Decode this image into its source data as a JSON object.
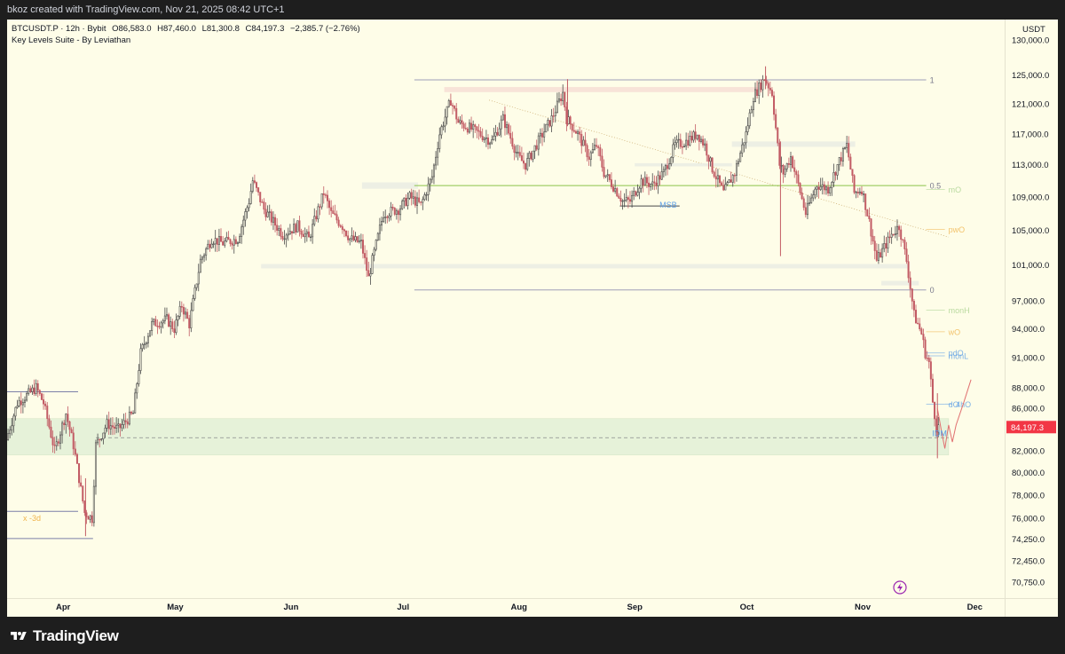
{
  "header": {
    "caption": "bkoz created with TradingView.com, Nov 21, 2025 08:42 UTC+1"
  },
  "legend": {
    "symbol": "BTCUSDT.P · 12h · Bybit",
    "open": "O86,583.0",
    "high": "H87,460.0",
    "low": "L81,300.8",
    "close": "C84,197.3",
    "change": "−2,385.7 (−2.76%)",
    "indicator": "Key Levels Suite - By Leviathan"
  },
  "footer": {
    "brand": "TradingView"
  },
  "colors": {
    "background": "#fefde8",
    "candle_up": "#4a4a4a",
    "candle_down": "#c25b64",
    "last_price_bg": "#f23645",
    "zone_fill": "#e6f2d9",
    "level_line": "#9f9fb8",
    "fib_mid": "#8bc34a",
    "annotation_blue": "#5b9ee6",
    "annotation_orange": "#f0b44c",
    "projection": "#e07070"
  },
  "icons": [
    "tradingview-logo-icon",
    "lightning-icon"
  ],
  "chart_data": {
    "type": "candlestick",
    "interval": "12h",
    "currency_label": "USDT",
    "y_ticks": [
      "130,000.0",
      "125,000.0",
      "121,000.0",
      "117,000.0",
      "113,000.0",
      "109,000.0",
      "105,000.0",
      "101,000.0",
      "97,000.0",
      "94,000.0",
      "91,000.0",
      "88,000.0",
      "86,000.0",
      "84,197.3",
      "82,000.0",
      "80,000.0",
      "78,000.0",
      "76,000.0",
      "74,250.0",
      "72,450.0",
      "70,750.0"
    ],
    "y_tick_values": [
      130000,
      125000,
      121000,
      117000,
      113000,
      109000,
      105000,
      101000,
      97000,
      94000,
      91000,
      88000,
      86000,
      84197.3,
      82000,
      80000,
      78000,
      76000,
      74250,
      72450,
      70750
    ],
    "y_scale": "log",
    "ylim": [
      69500,
      133000
    ],
    "x_ticks": [
      "Apr",
      "May",
      "Jun",
      "Jul",
      "Aug",
      "Sep",
      "Oct",
      "Nov",
      "Dec"
    ],
    "x_tick_dates": [
      "2025-04-01",
      "2025-05-01",
      "2025-06-01",
      "2025-07-01",
      "2025-08-01",
      "2025-09-01",
      "2025-10-01",
      "2025-11-01",
      "2025-12-01"
    ],
    "xlim": [
      "2025-03-17",
      "2025-12-09"
    ],
    "last_price": 84197.3,
    "price_path": [
      [
        "2025-03-17",
        83000
      ],
      [
        "2025-03-20",
        86500
      ],
      [
        "2025-03-25",
        88000
      ],
      [
        "2025-03-27",
        86500
      ],
      [
        "2025-03-30",
        82000
      ],
      [
        "2025-04-02",
        85500
      ],
      [
        "2025-04-04",
        82500
      ],
      [
        "2025-04-06",
        78500
      ],
      [
        "2025-04-07",
        76500
      ],
      [
        "2025-04-09",
        76000
      ],
      [
        "2025-04-10",
        82500
      ],
      [
        "2025-04-13",
        84500
      ],
      [
        "2025-04-16",
        84000
      ],
      [
        "2025-04-20",
        85500
      ],
      [
        "2025-04-22",
        91500
      ],
      [
        "2025-04-25",
        94500
      ],
      [
        "2025-04-29",
        95000
      ],
      [
        "2025-05-01",
        94000
      ],
      [
        "2025-05-03",
        96500
      ],
      [
        "2025-05-05",
        94500
      ],
      [
        "2025-05-08",
        101500
      ],
      [
        "2025-05-11",
        104000
      ],
      [
        "2025-05-14",
        103500
      ],
      [
        "2025-05-18",
        104000
      ],
      [
        "2025-05-21",
        108500
      ],
      [
        "2025-05-22",
        111000
      ],
      [
        "2025-05-25",
        107500
      ],
      [
        "2025-05-30",
        104500
      ],
      [
        "2025-06-03",
        105500
      ],
      [
        "2025-06-06",
        104000
      ],
      [
        "2025-06-10",
        109500
      ],
      [
        "2025-06-12",
        107000
      ],
      [
        "2025-06-15",
        105500
      ],
      [
        "2025-06-17",
        104000
      ],
      [
        "2025-06-20",
        103500
      ],
      [
        "2025-06-22",
        99500
      ],
      [
        "2025-06-23",
        101500
      ],
      [
        "2025-06-26",
        107000
      ],
      [
        "2025-06-30",
        107500
      ],
      [
        "2025-07-03",
        109000
      ],
      [
        "2025-07-06",
        108000
      ],
      [
        "2025-07-09",
        111500
      ],
      [
        "2025-07-11",
        117000
      ],
      [
        "2025-07-14",
        121500
      ],
      [
        "2025-07-16",
        118500
      ],
      [
        "2025-07-20",
        117500
      ],
      [
        "2025-07-25",
        116000
      ],
      [
        "2025-07-28",
        119000
      ],
      [
        "2025-08-01",
        114000
      ],
      [
        "2025-08-03",
        113000
      ],
      [
        "2025-08-07",
        116500
      ],
      [
        "2025-08-10",
        119000
      ],
      [
        "2025-08-13",
        122500
      ],
      [
        "2025-08-14",
        119000
      ],
      [
        "2025-08-17",
        117000
      ],
      [
        "2025-08-20",
        114000
      ],
      [
        "2025-08-22",
        115500
      ],
      [
        "2025-08-24",
        112000
      ],
      [
        "2025-08-27",
        110000
      ],
      [
        "2025-08-29",
        108500
      ],
      [
        "2025-08-31",
        108500
      ],
      [
        "2025-09-03",
        111000
      ],
      [
        "2025-09-06",
        110500
      ],
      [
        "2025-09-09",
        112000
      ],
      [
        "2025-09-12",
        115500
      ],
      [
        "2025-09-15",
        116000
      ],
      [
        "2025-09-18",
        117000
      ],
      [
        "2025-09-20",
        115500
      ],
      [
        "2025-09-22",
        112500
      ],
      [
        "2025-09-25",
        109500
      ],
      [
        "2025-09-28",
        112000
      ],
      [
        "2025-10-01",
        117000
      ],
      [
        "2025-10-03",
        122000
      ],
      [
        "2025-10-06",
        124500
      ],
      [
        "2025-10-08",
        122500
      ],
      [
        "2025-10-10",
        113000
      ],
      [
        "2025-10-11",
        112000
      ],
      [
        "2025-10-13",
        114000
      ],
      [
        "2025-10-15",
        110500
      ],
      [
        "2025-10-17",
        107000
      ],
      [
        "2025-10-20",
        110500
      ],
      [
        "2025-10-23",
        110000
      ],
      [
        "2025-10-26",
        113500
      ],
      [
        "2025-10-28",
        115500
      ],
      [
        "2025-10-30",
        109500
      ],
      [
        "2025-11-01",
        110000
      ],
      [
        "2025-11-03",
        106000
      ],
      [
        "2025-11-05",
        101500
      ],
      [
        "2025-11-07",
        103000
      ],
      [
        "2025-11-09",
        104500
      ],
      [
        "2025-11-11",
        105500
      ],
      [
        "2025-11-13",
        101500
      ],
      [
        "2025-11-15",
        95500
      ],
      [
        "2025-11-17",
        93500
      ],
      [
        "2025-11-18",
        91500
      ],
      [
        "2025-11-19",
        90500
      ],
      [
        "2025-11-20",
        86600
      ],
      [
        "2025-11-21",
        84197
      ]
    ],
    "spikes": [
      {
        "date": "2025-10-10",
        "low": 102000,
        "high": 116000
      },
      {
        "date": "2025-11-21",
        "low": 81300,
        "high": 87460
      },
      {
        "date": "2025-04-07",
        "low": 74500,
        "high": 79500
      },
      {
        "date": "2025-08-14",
        "low": 118000,
        "high": 124400
      },
      {
        "date": "2025-10-06",
        "low": 123000,
        "high": 126200
      }
    ],
    "levels": [
      {
        "label": "1",
        "price": 124300,
        "from": "2025-07-04",
        "to": "2025-11-18"
      },
      {
        "label": "0.5",
        "price": 110400,
        "from": "2025-07-04",
        "to": "2025-11-18"
      },
      {
        "label": "0",
        "price": 98200,
        "from": "2025-07-04",
        "to": "2025-11-18"
      },
      {
        "label": "mO",
        "price": 109900,
        "from": "2025-11-18",
        "to": "2025-11-23"
      },
      {
        "label": "pwO",
        "price": 105100,
        "from": "2025-11-18",
        "to": "2025-11-23"
      },
      {
        "label": "monH",
        "price": 96000,
        "from": "2025-11-18",
        "to": "2025-11-23"
      },
      {
        "label": "wO",
        "price": 93700,
        "from": "2025-11-18",
        "to": "2025-11-23"
      },
      {
        "label": "pdO",
        "price": 91500,
        "from": "2025-11-18",
        "to": "2025-11-23"
      },
      {
        "label": "monL",
        "price": 91200,
        "from": "2025-11-18",
        "to": "2025-11-23"
      },
      {
        "label": "dO",
        "price": 86400,
        "from": "2025-11-18",
        "to": "2025-11-23"
      },
      {
        "label": "4hO",
        "price": 86400,
        "from": "2025-11-23",
        "to": "2025-11-25"
      }
    ],
    "zone": {
      "from": "2025-03-17",
      "to": "2025-11-24",
      "price_top": 85000,
      "price_bottom": 81600,
      "midline": 83200
    },
    "annotations": [
      {
        "text": "MSB",
        "date": "2025-09-10",
        "price": 108000
      },
      {
        "text": "IDM",
        "date": "2025-11-22",
        "price": 83600
      },
      {
        "text": "x -3d",
        "date": "2025-03-17",
        "price": 76000
      }
    ],
    "lows_high_markers": [
      {
        "price": 87600,
        "from": "2025-03-17",
        "to": "2025-04-05"
      },
      {
        "price": 76600,
        "from": "2025-03-17",
        "to": "2025-04-05"
      },
      {
        "price": 74300,
        "from": "2025-03-17",
        "to": "2025-04-09"
      },
      {
        "price": 107900,
        "from": "2025-08-28",
        "to": "2025-09-13"
      }
    ],
    "projection": [
      [
        "2025-11-21",
        86000
      ],
      [
        "2025-11-22",
        84000
      ],
      [
        "2025-11-23",
        82200
      ],
      [
        "2025-11-24",
        84400
      ],
      [
        "2025-11-25",
        82800
      ],
      [
        "2025-11-26",
        84400
      ],
      [
        "2025-11-28",
        86500
      ],
      [
        "2025-11-30",
        88800
      ]
    ]
  }
}
